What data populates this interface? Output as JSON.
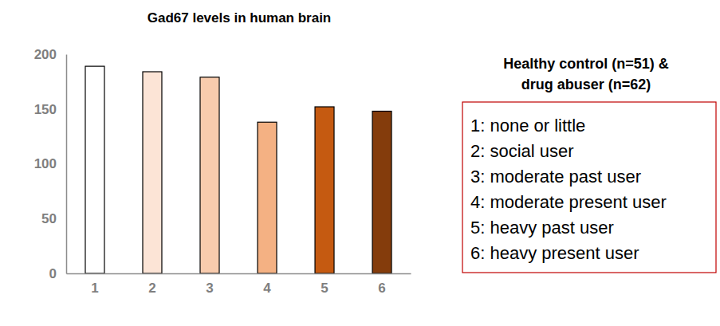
{
  "chart_data": {
    "type": "bar",
    "title": "Gad67 levels in human brain",
    "categories": [
      "1",
      "2",
      "3",
      "4",
      "5",
      "6"
    ],
    "values": [
      189,
      184,
      179,
      138,
      152,
      148
    ],
    "colors": [
      "#ffffff",
      "#fce4d6",
      "#f8cbad",
      "#f4b183",
      "#c55a11",
      "#843c0c"
    ],
    "ylim": [
      0,
      200
    ],
    "yticks": [
      0,
      50,
      100,
      150,
      200
    ],
    "grid": false,
    "annotations": [
      "Healthy control (n=51) &",
      "drug abuser (n=62)",
      "1: none or little",
      "2: social user",
      "3: moderate past user",
      "4: moderate present user",
      "5: heavy past user",
      "6: heavy present user"
    ]
  }
}
